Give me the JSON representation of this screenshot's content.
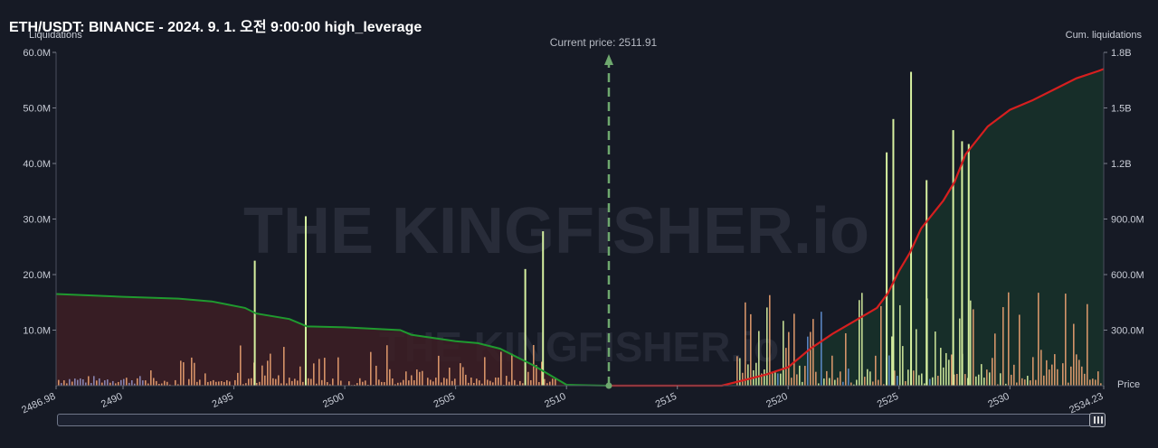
{
  "title": "ETH/USDT: BINANCE - 2024. 9. 1. 오전 9:00:00 high_leverage",
  "chart_data": {
    "type": "bar",
    "current_price_label": "Current price: 2511.91",
    "current_price": 2511.91,
    "watermark": "THE KINGFISHER.io",
    "x_axis": {
      "label": "Price",
      "min": 2486.98,
      "max": 2534.23,
      "ticks": [
        "2486.98",
        "2490",
        "2495",
        "2500",
        "2505",
        "2510",
        "2515",
        "2520",
        "2525",
        "2530",
        "2534.23"
      ]
    },
    "y_left": {
      "label": "Liquidations",
      "min": 0,
      "max": 60000000,
      "ticks": [
        "10.0M",
        "20.0M",
        "30.0M",
        "40.0M",
        "50.0M",
        "60.0M"
      ]
    },
    "y_right": {
      "label": "Cum. liquidations",
      "min": 0,
      "max": 1800000000,
      "ticks": [
        "300.0M",
        "600.0M",
        "900.0M",
        "1.2B",
        "1.5B",
        "1.8B"
      ]
    },
    "colors": {
      "background": "#161a25",
      "long_cum": "#1f9a2f",
      "short_cum": "#d61f1f",
      "long_fill": "#3d1f24",
      "short_fill": "#17322a",
      "bar_light": "#d6f0a0",
      "bar_orange": "#e8a070",
      "bar_blue": "#5f8fd0",
      "current_price_line": "#6ea86e"
    },
    "highlighted_bars": [
      {
        "price": 2495.9,
        "value": 22.5
      },
      {
        "price": 2498.2,
        "value": 30.5
      },
      {
        "price": 2508.1,
        "value": 21.0
      },
      {
        "price": 2508.9,
        "value": 27.8
      },
      {
        "price": 2524.4,
        "value": 42.0
      },
      {
        "price": 2524.7,
        "value": 48.0
      },
      {
        "price": 2525.5,
        "value": 56.5
      },
      {
        "price": 2526.2,
        "value": 37.0
      },
      {
        "price": 2527.4,
        "value": 46.0
      },
      {
        "price": 2527.8,
        "value": 44.0
      },
      {
        "price": 2528.1,
        "value": 43.5
      }
    ],
    "cumulative_long": [
      [
        2486.98,
        495
      ],
      [
        2490,
        480
      ],
      [
        2492.5,
        470
      ],
      [
        2494,
        455
      ],
      [
        2495.5,
        420
      ],
      [
        2496,
        390
      ],
      [
        2497.5,
        360
      ],
      [
        2498.3,
        320
      ],
      [
        2500,
        315
      ],
      [
        2502.5,
        300
      ],
      [
        2503,
        275
      ],
      [
        2505,
        240
      ],
      [
        2506,
        230
      ],
      [
        2507,
        200
      ],
      [
        2508.5,
        110
      ],
      [
        2510,
        5
      ],
      [
        2511.91,
        0
      ]
    ],
    "cumulative_short": [
      [
        2511.91,
        0
      ],
      [
        2517,
        0
      ],
      [
        2518,
        30
      ],
      [
        2519,
        60
      ],
      [
        2520,
        100
      ],
      [
        2521,
        200
      ],
      [
        2522,
        280
      ],
      [
        2523,
        350
      ],
      [
        2524,
        420
      ],
      [
        2524.5,
        500
      ],
      [
        2525,
        620
      ],
      [
        2525.5,
        720
      ],
      [
        2526,
        850
      ],
      [
        2527,
        1000
      ],
      [
        2527.5,
        1100
      ],
      [
        2528,
        1250
      ],
      [
        2529,
        1400
      ],
      [
        2530,
        1490
      ],
      [
        2531,
        1540
      ],
      [
        2532,
        1600
      ],
      [
        2533,
        1660
      ],
      [
        2534,
        1700
      ],
      [
        2534.23,
        1710
      ]
    ]
  }
}
